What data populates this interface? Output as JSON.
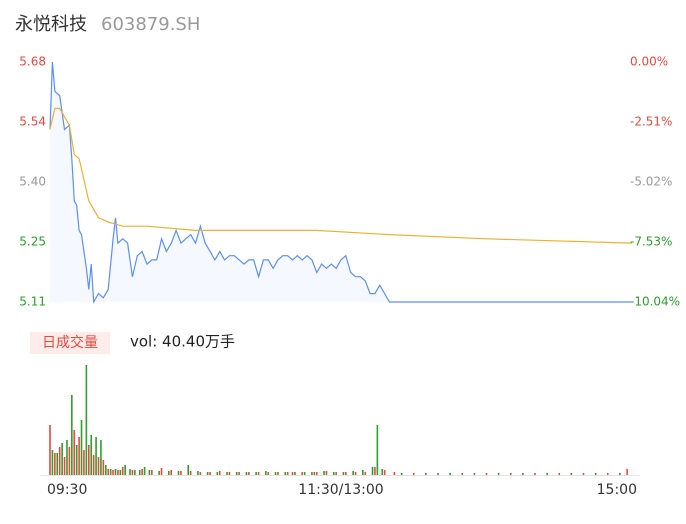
{
  "chart_data": [
    {
      "type": "line",
      "title": "永悦科技",
      "subtitle": "603879.SH",
      "xlim": [
        0,
        240
      ],
      "ylim": [
        5.11,
        5.68
      ],
      "yticks": [
        {
          "value": 5.68,
          "label": "5.68"
        },
        {
          "value": 5.5375,
          "label": "5.54"
        },
        {
          "value": 5.395,
          "label": "5.40"
        },
        {
          "value": 5.2525,
          "label": "5.25"
        },
        {
          "value": 5.11,
          "label": "5.11"
        }
      ],
      "y2lim": [
        -10.04,
        0
      ],
      "y2ticks": [
        {
          "value": 0,
          "label": "0.00%"
        },
        {
          "value": -2.51,
          "label": "-2.51%"
        },
        {
          "value": -5.02,
          "label": "-5.02%"
        },
        {
          "value": -7.53,
          "label": "-7.53%"
        },
        {
          "value": -10.04,
          "label": "-10.04%"
        }
      ],
      "series": [
        {
          "color": "#5b8ff9",
          "x": [
            0,
            1,
            2,
            4,
            6,
            8,
            9,
            10,
            11,
            12,
            13,
            15,
            16,
            17,
            18,
            20,
            22,
            24,
            26,
            27,
            28,
            30,
            32,
            34,
            36,
            38,
            40,
            42,
            44,
            46,
            48,
            50,
            52,
            54,
            56,
            58,
            60,
            62,
            64,
            66,
            68,
            70,
            72,
            74,
            76,
            78,
            80,
            82,
            84,
            86,
            88,
            90,
            92,
            94,
            96,
            98,
            100,
            102,
            104,
            106,
            108,
            110,
            112,
            114,
            116,
            118,
            120,
            122,
            124,
            126,
            128,
            130,
            132,
            134,
            136,
            138,
            140,
            240
          ],
          "values": [
            5.52,
            5.68,
            5.61,
            5.6,
            5.52,
            5.53,
            5.45,
            5.35,
            5.34,
            5.28,
            5.27,
            5.19,
            5.14,
            5.2,
            5.11,
            5.13,
            5.12,
            5.14,
            5.26,
            5.31,
            5.25,
            5.26,
            5.25,
            5.17,
            5.22,
            5.23,
            5.2,
            5.21,
            5.21,
            5.26,
            5.23,
            5.25,
            5.28,
            5.25,
            5.26,
            5.27,
            5.25,
            5.29,
            5.25,
            5.23,
            5.21,
            5.23,
            5.21,
            5.22,
            5.22,
            5.21,
            5.2,
            5.21,
            5.21,
            5.17,
            5.21,
            5.21,
            5.19,
            5.21,
            5.22,
            5.22,
            5.21,
            5.22,
            5.21,
            5.22,
            5.21,
            5.18,
            5.2,
            5.19,
            5.2,
            5.19,
            5.21,
            5.22,
            5.18,
            5.17,
            5.17,
            5.16,
            5.13,
            5.13,
            5.15,
            5.13,
            5.11,
            5.11
          ]
        },
        {
          "color": "#f0b030",
          "x": [
            0,
            2,
            4,
            8,
            10,
            12,
            14,
            16,
            18,
            20,
            24,
            30,
            40,
            60,
            110,
            140,
            180,
            240
          ],
          "values": [
            5.52,
            5.57,
            5.57,
            5.53,
            5.46,
            5.45,
            5.4,
            5.35,
            5.33,
            5.31,
            5.3,
            5.29,
            5.29,
            5.28,
            5.28,
            5.27,
            5.26,
            5.25
          ]
        }
      ]
    },
    {
      "type": "bar",
      "label": "日成交量",
      "annotation": "vol: 40.40万手",
      "xlim": [
        0,
        240
      ],
      "xticks": [
        {
          "value": 0,
          "label": "09:30"
        },
        {
          "value": 120,
          "label": "11:30/13:00"
        },
        {
          "value": 240,
          "label": "15:00"
        }
      ],
      "ylim": [
        0,
        110
      ],
      "series": [
        {
          "color": "#e8483f",
          "x": [
            0,
            2,
            4,
            6,
            8,
            10,
            12,
            14,
            16,
            18,
            20,
            22,
            24,
            26,
            28,
            30,
            34,
            38,
            42,
            46,
            50,
            54,
            58,
            62,
            66,
            70,
            74,
            78,
            82,
            86,
            90,
            94,
            98,
            100,
            104,
            108,
            110,
            114,
            118,
            122,
            126,
            130,
            134,
            138,
            142,
            150,
            160,
            170,
            180,
            190,
            200,
            210,
            220,
            230,
            238
          ],
          "values": [
            50,
            22,
            28,
            18,
            28,
            45,
            38,
            25,
            30,
            20,
            18,
            15,
            6,
            5,
            5,
            8,
            5,
            6,
            5,
            7,
            5,
            4,
            4,
            3,
            3,
            4,
            3,
            3,
            3,
            3,
            3,
            3,
            3,
            3,
            3,
            3,
            3,
            4,
            3,
            3,
            3,
            3,
            8,
            5,
            3,
            2,
            2,
            2,
            2,
            2,
            2,
            2,
            2,
            2,
            6
          ]
        },
        {
          "color": "#2ca02c",
          "x": [
            1,
            3,
            5,
            7,
            9,
            11,
            13,
            15,
            17,
            19,
            21,
            23,
            25,
            27,
            29,
            31,
            33,
            35,
            37,
            39,
            41,
            45,
            49,
            53,
            57,
            61,
            65,
            69,
            73,
            77,
            81,
            85,
            89,
            93,
            97,
            101,
            105,
            109,
            113,
            117,
            121,
            125,
            129,
            133,
            135,
            137,
            145,
            155,
            165,
            175,
            185,
            195,
            205,
            215,
            225,
            235
          ],
          "values": [
            25,
            22,
            32,
            35,
            80,
            30,
            55,
            110,
            40,
            38,
            35,
            10,
            6,
            6,
            5,
            10,
            6,
            5,
            5,
            8,
            5,
            4,
            4,
            4,
            10,
            4,
            3,
            3,
            3,
            3,
            3,
            3,
            4,
            3,
            3,
            3,
            3,
            3,
            4,
            3,
            3,
            4,
            5,
            8,
            50,
            6,
            2,
            2,
            2,
            2,
            2,
            2,
            2,
            2,
            2,
            2
          ]
        }
      ]
    }
  ]
}
